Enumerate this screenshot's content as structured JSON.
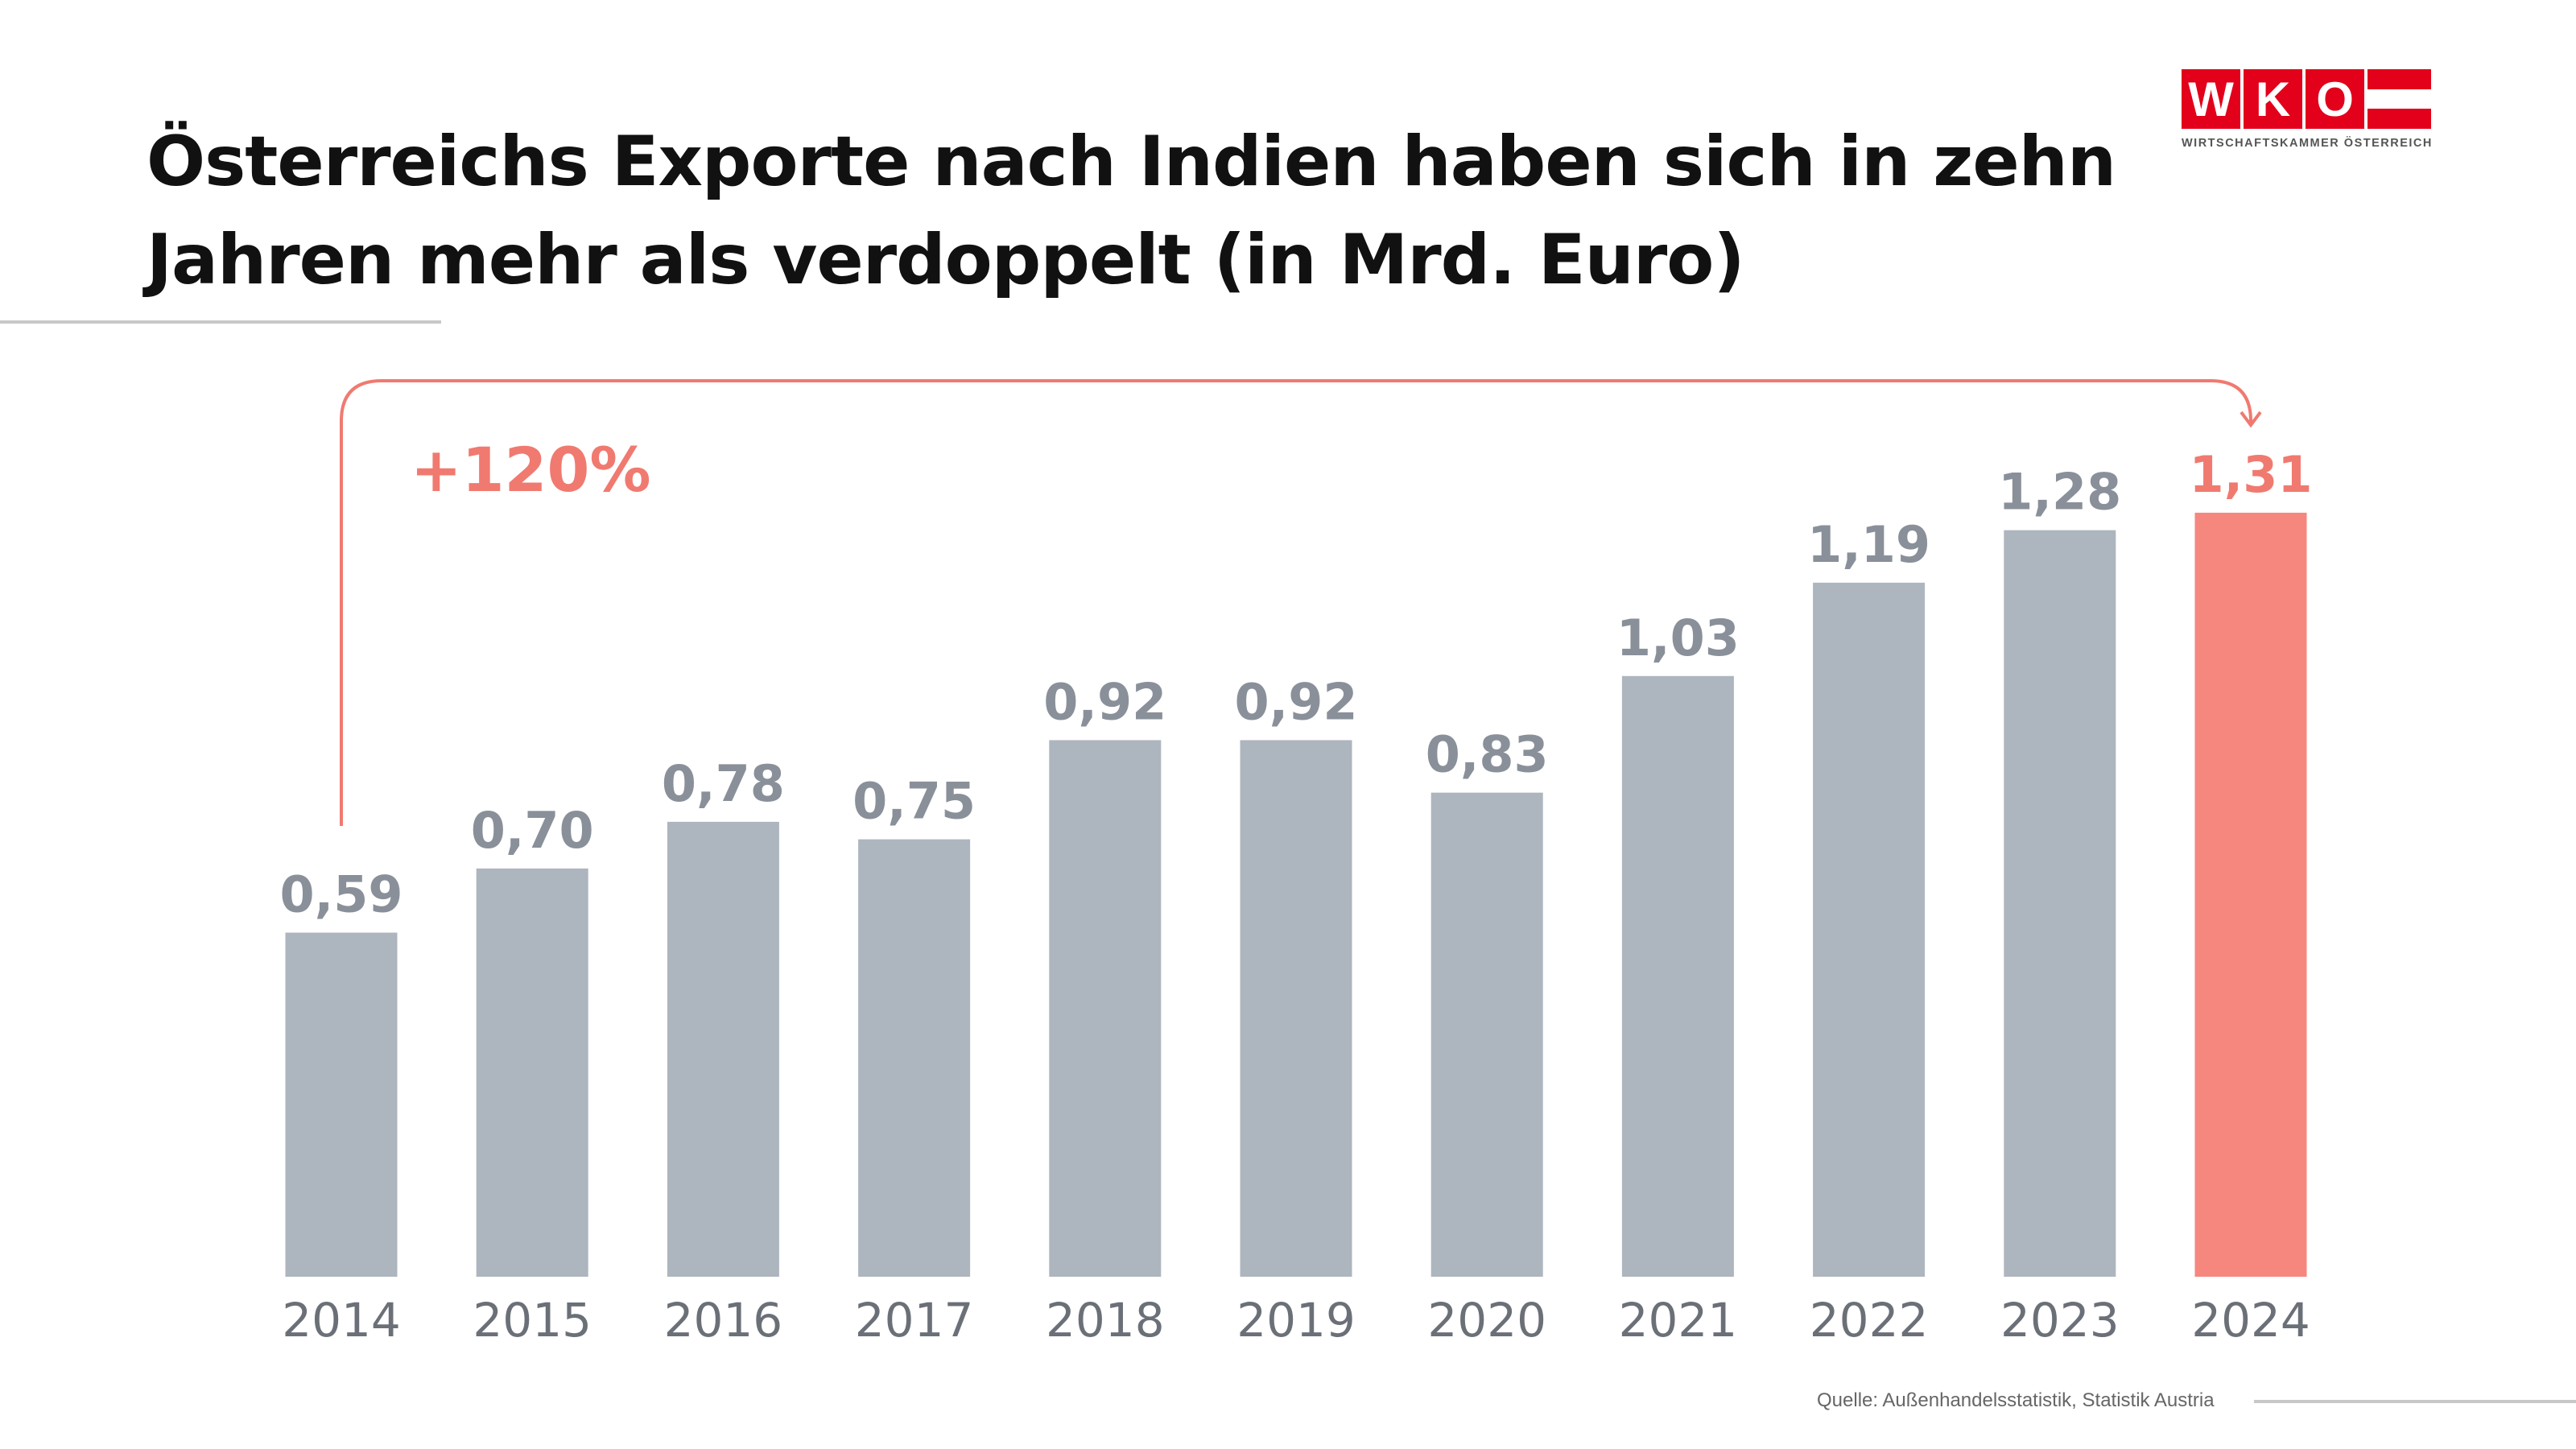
{
  "title_lines": [
    "Österreichs Exporte nach Indien haben sich in zehn",
    "Jahren mehr als verdoppelt (in Mrd. Euro)"
  ],
  "logo": {
    "letters": [
      "W",
      "K",
      "O"
    ],
    "subtitle": "WIRTSCHAFTSKAMMER ÖSTERREICH",
    "color": "#e2001a"
  },
  "source": "Quelle: Außenhandelsstatistik, Statistik Austria",
  "chart_data": {
    "type": "bar",
    "title": "Österreichs Exporte nach Indien haben sich in zehn Jahren mehr als verdoppelt (in Mrd. Euro)",
    "categories": [
      "2014",
      "2015",
      "2016",
      "2017",
      "2018",
      "2019",
      "2020",
      "2021",
      "2022",
      "2023",
      "2024"
    ],
    "values": [
      0.59,
      0.7,
      0.78,
      0.75,
      0.92,
      0.92,
      0.83,
      1.03,
      1.19,
      1.28,
      1.31
    ],
    "value_labels": [
      "0,59",
      "0,70",
      "0,78",
      "0,75",
      "0,92",
      "0,92",
      "0,83",
      "1,03",
      "1,19",
      "1,28",
      "1,31"
    ],
    "highlight_index": 10,
    "annotation": "+120%",
    "ylim": [
      0,
      1.31
    ],
    "grid": false,
    "colors": {
      "bar": "#adb5be",
      "highlight": "#f5877f",
      "annotation": "#f07a70",
      "label": "#8a9099",
      "tick": "#6b7078"
    }
  }
}
